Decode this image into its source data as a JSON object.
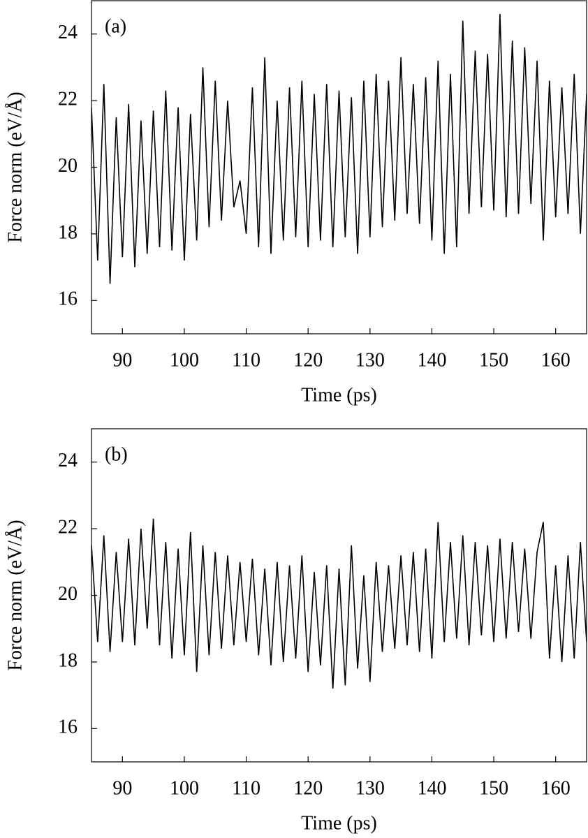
{
  "chart_data": [
    {
      "type": "line",
      "title": "(a)",
      "xlabel": "Time (ps)",
      "ylabel": "Force norm (eV/Å)",
      "xlim": [
        85,
        165
      ],
      "ylim": [
        15,
        25
      ],
      "xticks": [
        90,
        100,
        110,
        120,
        130,
        140,
        150,
        160
      ],
      "yticks": [
        16,
        18,
        20,
        22,
        24
      ],
      "color": "#000000",
      "x": [
        85,
        86,
        87,
        88,
        89,
        90,
        91,
        92,
        93,
        94,
        95,
        96,
        97,
        98,
        99,
        100,
        101,
        102,
        103,
        104,
        105,
        106,
        107,
        108,
        109,
        110,
        111,
        112,
        113,
        114,
        115,
        116,
        117,
        118,
        119,
        120,
        121,
        122,
        123,
        124,
        125,
        126,
        127,
        128,
        129,
        130,
        131,
        132,
        133,
        134,
        135,
        136,
        137,
        138,
        139,
        140,
        141,
        142,
        143,
        144,
        145,
        146,
        147,
        148,
        149,
        150,
        151,
        152,
        153,
        154,
        155,
        156,
        157,
        158,
        159,
        160,
        161,
        162,
        163,
        164,
        165
      ],
      "values": [
        21.8,
        17.2,
        22.5,
        16.5,
        21.5,
        17.3,
        21.9,
        17.0,
        21.4,
        17.4,
        21.7,
        17.6,
        22.3,
        17.5,
        21.8,
        17.2,
        21.6,
        17.8,
        23.0,
        18.2,
        22.6,
        18.4,
        22.0,
        18.8,
        19.6,
        18.0,
        22.4,
        17.6,
        23.3,
        17.4,
        22.0,
        17.8,
        22.4,
        17.9,
        22.6,
        17.6,
        22.2,
        17.8,
        22.5,
        17.6,
        22.3,
        17.9,
        22.1,
        17.4,
        22.6,
        17.9,
        22.8,
        18.2,
        22.6,
        18.4,
        23.3,
        18.6,
        22.5,
        18.3,
        22.7,
        17.8,
        23.2,
        17.4,
        22.8,
        17.6,
        24.4,
        18.6,
        23.5,
        18.8,
        23.4,
        18.7,
        24.6,
        18.5,
        23.8,
        18.6,
        23.6,
        18.9,
        23.2,
        17.8,
        22.6,
        18.5,
        22.4,
        18.6,
        22.8,
        18.0,
        22.2
      ]
    },
    {
      "type": "line",
      "title": "(b)",
      "xlabel": "Time (ps)",
      "ylabel": "Force norm (eV/Å)",
      "xlim": [
        85,
        165
      ],
      "ylim": [
        15,
        25
      ],
      "xticks": [
        90,
        100,
        110,
        120,
        130,
        140,
        150,
        160
      ],
      "yticks": [
        16,
        18,
        20,
        22,
        24
      ],
      "color": "#000000",
      "x": [
        85,
        86,
        87,
        88,
        89,
        90,
        91,
        92,
        93,
        94,
        95,
        96,
        97,
        98,
        99,
        100,
        101,
        102,
        103,
        104,
        105,
        106,
        107,
        108,
        109,
        110,
        111,
        112,
        113,
        114,
        115,
        116,
        117,
        118,
        119,
        120,
        121,
        122,
        123,
        124,
        125,
        126,
        127,
        128,
        129,
        130,
        131,
        132,
        133,
        134,
        135,
        136,
        137,
        138,
        139,
        140,
        141,
        142,
        143,
        144,
        145,
        146,
        147,
        148,
        149,
        150,
        151,
        152,
        153,
        154,
        155,
        156,
        157,
        158,
        159,
        160,
        161,
        162,
        163,
        164,
        165
      ],
      "values": [
        21.5,
        18.6,
        21.8,
        18.3,
        21.3,
        18.6,
        21.7,
        18.5,
        22.0,
        19.0,
        22.3,
        18.5,
        21.6,
        18.1,
        21.4,
        18.2,
        21.9,
        17.7,
        21.5,
        18.2,
        21.3,
        18.4,
        21.2,
        18.5,
        21.0,
        18.6,
        21.1,
        18.2,
        20.8,
        17.9,
        21.0,
        18.0,
        20.9,
        18.1,
        21.2,
        17.7,
        20.7,
        17.9,
        20.9,
        17.2,
        20.8,
        17.3,
        21.5,
        17.8,
        20.6,
        17.4,
        21.0,
        18.3,
        20.9,
        18.4,
        21.2,
        18.5,
        21.3,
        18.3,
        21.4,
        18.1,
        22.2,
        18.6,
        21.6,
        18.7,
        21.8,
        18.5,
        21.6,
        18.8,
        21.5,
        18.6,
        21.7,
        18.7,
        21.6,
        18.9,
        21.4,
        18.7,
        21.3,
        22.2,
        18.1,
        20.9,
        18.0,
        21.2,
        18.1,
        21.6,
        18.6
      ]
    }
  ]
}
